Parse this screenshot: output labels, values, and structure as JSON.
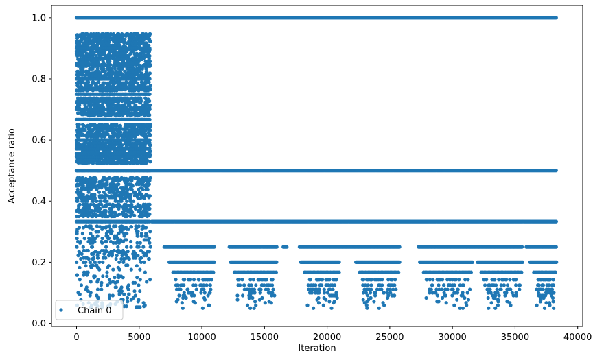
{
  "chart_data": {
    "type": "scatter",
    "xlabel": "Iteration",
    "ylabel": "Acceptance ratio",
    "xlim": [
      -2000,
      40400
    ],
    "ylim": [
      -0.01,
      1.04
    ],
    "xticks": [
      0,
      5000,
      10000,
      15000,
      20000,
      25000,
      30000,
      35000,
      40000
    ],
    "yticks": [
      0.0,
      0.2,
      0.4,
      0.6,
      0.8,
      1.0
    ],
    "xtick_labels": [
      "0",
      "5000",
      "10000",
      "15000",
      "20000",
      "25000",
      "30000",
      "35000",
      "40000"
    ],
    "ytick_labels": [
      "0.0",
      "0.2",
      "0.4",
      "0.6",
      "0.8",
      "1.0"
    ],
    "grid": false,
    "legend_position": "lower-left",
    "marker_color": "#1f77b4",
    "series": [
      {
        "name": "Chain 0",
        "x_range": [
          0,
          38300
        ],
        "levels": [
          {
            "y": 1.0,
            "x_range": [
              0,
              38300
            ]
          },
          {
            "y": 0.5,
            "x_range": [
              0,
              38300
            ]
          },
          {
            "y": 0.333,
            "x_range": [
              0,
              38300
            ]
          },
          {
            "y": 0.25,
            "x_range": [
              0,
              38300
            ]
          },
          {
            "y": 0.2,
            "x_range": [
              0,
              38300
            ]
          },
          {
            "y": 0.167,
            "x_range": [
              0,
              38300
            ]
          },
          {
            "y": 0.143,
            "x_range": [
              0,
              38300
            ]
          },
          {
            "y": 0.125,
            "x_range": [
              0,
              38300
            ]
          },
          {
            "y": 0.111,
            "x_range": [
              0,
              38300
            ]
          },
          {
            "y": 0.1,
            "x_range": [
              0,
              38300
            ]
          },
          {
            "y": 0.091,
            "x_range": [
              0,
              38300
            ]
          },
          {
            "y": 0.083,
            "x_range": [
              0,
              38300
            ]
          },
          {
            "y": 0.077,
            "x_range": [
              0,
              38300
            ]
          },
          {
            "y": 0.071,
            "x_range": [
              0,
              38300
            ]
          },
          {
            "y": 0.067,
            "x_range": [
              0,
              38300
            ]
          },
          {
            "y": 0.059,
            "x_range": [
              0,
              38300
            ]
          },
          {
            "y": 0.05,
            "x_range": [
              0,
              38300
            ]
          }
        ]
      }
    ]
  }
}
